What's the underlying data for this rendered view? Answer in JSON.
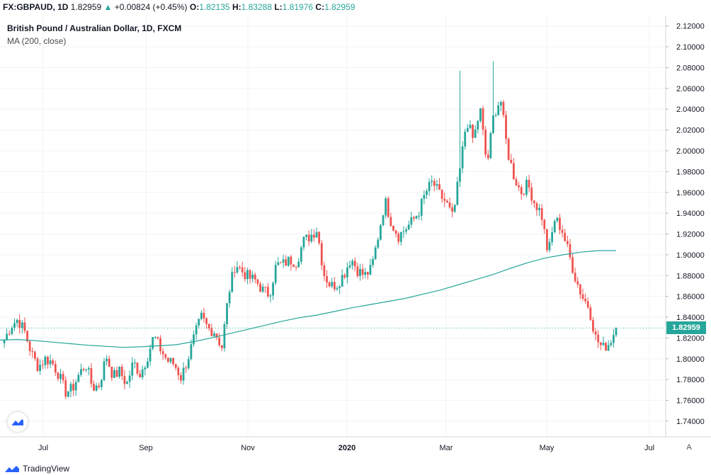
{
  "header": {
    "symbol": "FX:GBPAUD, 1D",
    "price": "1.82959",
    "change": "+0.00824 (+0.45%)",
    "o_label": "O:",
    "o_value": "1.82135",
    "h_label": "H:",
    "h_value": "1.83288",
    "l_label": "L:",
    "l_value": "1.81976",
    "c_label": "C:",
    "c_value": "1.82959"
  },
  "legend": {
    "title": "British Pound / Australian Dollar, 1D, FXCM",
    "indicator": "MA (200, close)"
  },
  "brand": "TradingView",
  "auto_label": "A",
  "colors": {
    "up": "#26a69a",
    "down": "#ef5350",
    "ma": "#26a69a",
    "grid": "#f0f3fa"
  },
  "chart_data": {
    "type": "candlestick",
    "title": "British Pound / Australian Dollar, 1D, FXCM",
    "symbol": "FX:GBPAUD",
    "current_price": 1.82959,
    "ylim": [
      1.725,
      2.13
    ],
    "y_ticks": [
      "2.12000",
      "2.10000",
      "2.08000",
      "2.06000",
      "2.04000",
      "2.02000",
      "2.00000",
      "1.98000",
      "1.96000",
      "1.94000",
      "1.92000",
      "1.90000",
      "1.88000",
      "1.86000",
      "1.84000",
      "1.82000",
      "1.80000",
      "1.78000",
      "1.76000",
      "1.74000"
    ],
    "x_ticks": [
      "Jul",
      "Sep",
      "Nov",
      "2020",
      "Mar",
      "May",
      "Jul"
    ],
    "close_path": [
      1.818,
      1.832,
      1.838,
      1.826,
      1.805,
      1.792,
      1.8,
      1.797,
      1.785,
      1.768,
      1.771,
      1.785,
      1.795,
      1.772,
      1.775,
      1.803,
      1.783,
      1.788,
      1.775,
      1.797,
      1.785,
      1.801,
      1.822,
      1.809,
      1.798,
      1.795,
      1.782,
      1.8,
      1.822,
      1.84,
      1.829,
      1.826,
      1.811,
      1.863,
      1.892,
      1.884,
      1.878,
      1.875,
      1.866,
      1.862,
      1.89,
      1.891,
      1.895,
      1.893,
      1.913,
      1.918,
      1.925,
      1.882,
      1.87,
      1.872,
      1.882,
      1.897,
      1.885,
      1.88,
      1.886,
      1.918,
      1.952,
      1.93,
      1.918,
      1.925,
      1.932,
      1.942,
      1.96,
      1.97,
      1.958,
      1.95,
      1.935,
      1.98,
      2.03,
      2.01,
      2.04,
      1.985,
      2.035,
      2.05,
      2.0,
      1.975,
      1.96,
      1.968,
      1.95,
      1.94,
      1.9,
      1.935,
      1.925,
      1.902,
      1.878,
      1.86,
      1.85,
      1.82,
      1.81,
      1.815,
      1.82959
    ],
    "ma": {
      "name": "MA (200, close)",
      "values": [
        1.818,
        1.8185,
        1.8175,
        1.816,
        1.8145,
        1.813,
        1.812,
        1.811,
        1.8115,
        1.8125,
        1.8135,
        1.8165,
        1.82,
        1.824,
        1.828,
        1.832,
        1.836,
        1.8395,
        1.842,
        1.8455,
        1.849,
        1.852,
        1.855,
        1.858,
        1.862,
        1.866,
        1.871,
        1.876,
        1.881,
        1.887,
        1.8925,
        1.897,
        1.9,
        1.9025,
        1.904,
        1.904
      ]
    }
  }
}
